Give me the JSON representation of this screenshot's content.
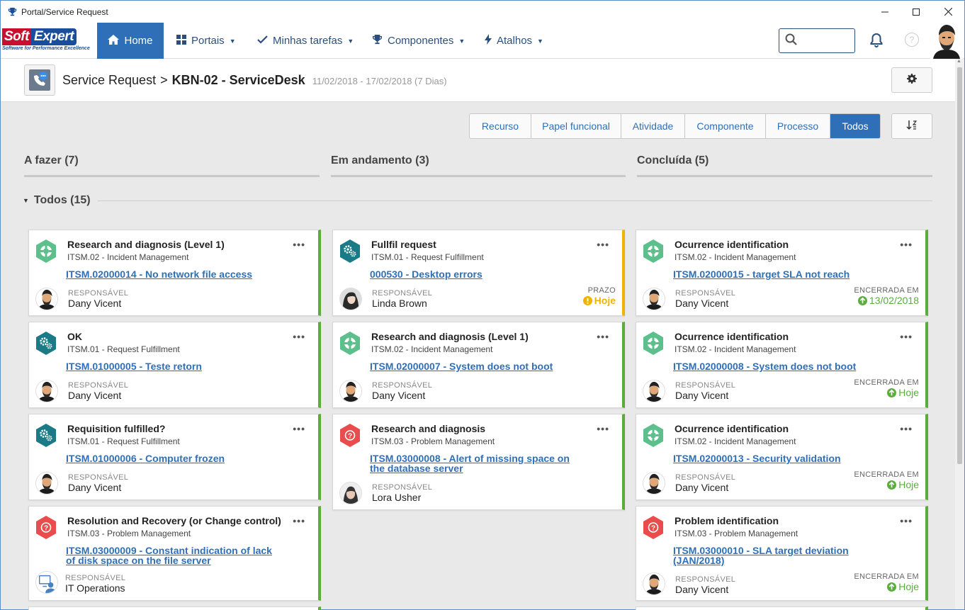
{
  "window": {
    "title": "Portal/Service Request"
  },
  "nav": {
    "brand_soft": "Soft",
    "brand_expert": "Expert",
    "brand_tagline": "Software for Performance Excellence",
    "home": "Home",
    "portais": "Portais",
    "minhas_tarefas": "Minhas tarefas",
    "componentes": "Componentes",
    "atalhos": "Atalhos",
    "help": "?"
  },
  "header": {
    "breadcrumb_root": "Service Request",
    "breadcrumb_sep": ">",
    "current": "KBN-02 - ServiceDesk",
    "dates": "11/02/2018 - 17/02/2018 (7 Dias)"
  },
  "filters": [
    "Recurso",
    "Papel funcional",
    "Atividade",
    "Componente",
    "Processo",
    "Todos"
  ],
  "filter_active": "Todos",
  "columns": {
    "todo": "A fazer (7)",
    "doing": "Em andamento (3)",
    "done": "Concluída (5)"
  },
  "group": {
    "title": "Todos (15)"
  },
  "colors": {
    "primary": "#2f6fb8",
    "ok": "#5aad3c",
    "warn": "#f0b400",
    "incident_icon": "#5cbf8c",
    "fulfillment_icon": "#1a7b87",
    "problem_icon": "#e84c4c"
  },
  "cards": {
    "c0": {
      "icon": "lifebuoy-icon",
      "title": "Research and diagnosis (Level 1)",
      "sub": "ITSM.02 - Incident Management",
      "link": "ITSM.02000014 - No network file access",
      "rlabel": "RESPONSÁVEL",
      "rname": "Dany Vicent"
    },
    "c1": {
      "icon": "gears-icon",
      "title": "OK",
      "sub": "ITSM.01 - Request Fulfillment",
      "link": "ITSM.01000005 - Teste retorn",
      "rlabel": "RESPONSÁVEL",
      "rname": "Dany Vicent"
    },
    "c2": {
      "icon": "gears-icon",
      "title": "Requisition fulfilled?",
      "sub": "ITSM.01 - Request Fulfillment",
      "link": "ITSM.01000006 - Computer frozen",
      "rlabel": "RESPONSÁVEL",
      "rname": "Dany Vicent"
    },
    "c3": {
      "icon": "question-icon",
      "title": "Resolution and Recovery (or Change control)",
      "sub": "ITSM.03 - Problem Management",
      "link": "ITSM.03000009 - Constant indication of lack of disk space on the file server",
      "rlabel": "RESPONSÁVEL",
      "rname": "IT Operations"
    },
    "d0": {
      "icon": "gears-icon",
      "title": "Fullfil request",
      "sub": "ITSM.01 - Request Fulfillment",
      "link": "000530 - Desktop errors",
      "rlabel": "RESPONSÁVEL",
      "rname": "Linda Brown",
      "slabel": "PRAZO",
      "sval": "Hoje"
    },
    "d1": {
      "icon": "lifebuoy-icon",
      "title": "Research and diagnosis (Level 1)",
      "sub": "ITSM.02 - Incident Management",
      "link": "ITSM.02000007 - System does not boot",
      "rlabel": "RESPONSÁVEL",
      "rname": "Dany Vicent"
    },
    "d2": {
      "icon": "question-icon",
      "title": "Research and diagnosis",
      "sub": "ITSM.03 - Problem Management",
      "link": "ITSM.03000008 - Alert of missing space on the database server",
      "rlabel": "RESPONSÁVEL",
      "rname": "Lora Usher"
    },
    "e0": {
      "icon": "lifebuoy-icon",
      "title": "Ocurrence identification",
      "sub": "ITSM.02 - Incident Management",
      "link": "ITSM.02000015 - target SLA not reach",
      "rlabel": "RESPONSÁVEL",
      "rname": "Dany Vicent",
      "slabel": "ENCERRADA EM",
      "sval": "13/02/2018"
    },
    "e1": {
      "icon": "lifebuoy-icon",
      "title": "Ocurrence identification",
      "sub": "ITSM.02 - Incident Management",
      "link": "ITSM.02000008 - System does not boot",
      "rlabel": "RESPONSÁVEL",
      "rname": "Dany Vicent",
      "slabel": "ENCERRADA EM",
      "sval": "Hoje"
    },
    "e2": {
      "icon": "lifebuoy-icon",
      "title": "Ocurrence identification",
      "sub": "ITSM.02 - Incident Management",
      "link": "ITSM.02000013 - Security validation",
      "rlabel": "RESPONSÁVEL",
      "rname": "Dany Vicent",
      "slabel": "ENCERRADA EM",
      "sval": "Hoje"
    },
    "e3": {
      "icon": "question-icon",
      "title": "Problem identification",
      "sub": "ITSM.03 - Problem Management",
      "link": "ITSM.03000010 - SLA target deviation (JAN/2018)",
      "rlabel": "RESPONSÁVEL",
      "rname": "Dany Vicent",
      "slabel": "ENCERRADA EM",
      "sval": "Hoje"
    }
  }
}
